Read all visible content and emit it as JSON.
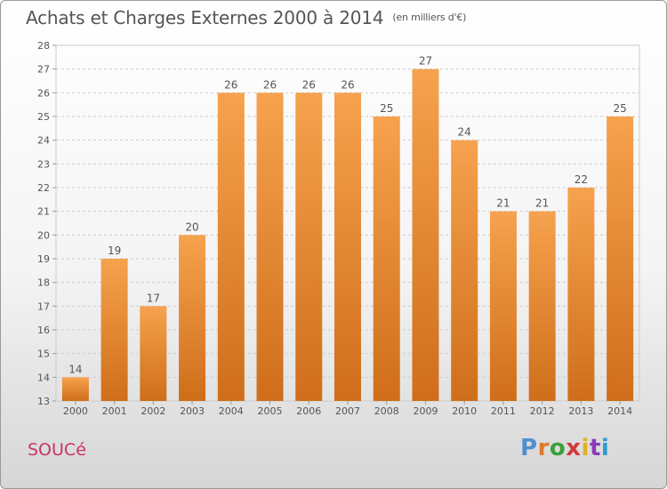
{
  "header": {
    "title": "Achats et Charges Externes 2000 à 2014",
    "unit": "(en milliers d'€)"
  },
  "footer": {
    "commune": "SOUCé",
    "brand": "Proxiti",
    "brand_colors": [
      "#4f8fd0",
      "#e07a2a",
      "#3aa03a",
      "#d23a3a",
      "#e0b020",
      "#8c3ab8",
      "#2a9fd0"
    ]
  },
  "colors": {
    "bar_light": "#f6a24e",
    "bar_dark": "#cf6e1a",
    "grid": "#cccccc",
    "label": "#555555",
    "commune": "#c8336b"
  },
  "chart_data": {
    "type": "bar",
    "title": "Achats et Charges Externes 2000 à 2014",
    "subtitle": "(en milliers d'€)",
    "xlabel": "",
    "ylabel": "",
    "categories": [
      "2000",
      "2001",
      "2002",
      "2003",
      "2004",
      "2005",
      "2006",
      "2007",
      "2008",
      "2009",
      "2010",
      "2011",
      "2012",
      "2013",
      "2014"
    ],
    "values": [
      14,
      19,
      17,
      20,
      26,
      26,
      26,
      26,
      25,
      27,
      24,
      21,
      21,
      22,
      25
    ],
    "ylim": [
      13,
      28
    ],
    "yticks": [
      13,
      14,
      15,
      16,
      17,
      18,
      19,
      20,
      21,
      22,
      23,
      24,
      25,
      26,
      27,
      28
    ],
    "grid": true,
    "legend": "none"
  }
}
